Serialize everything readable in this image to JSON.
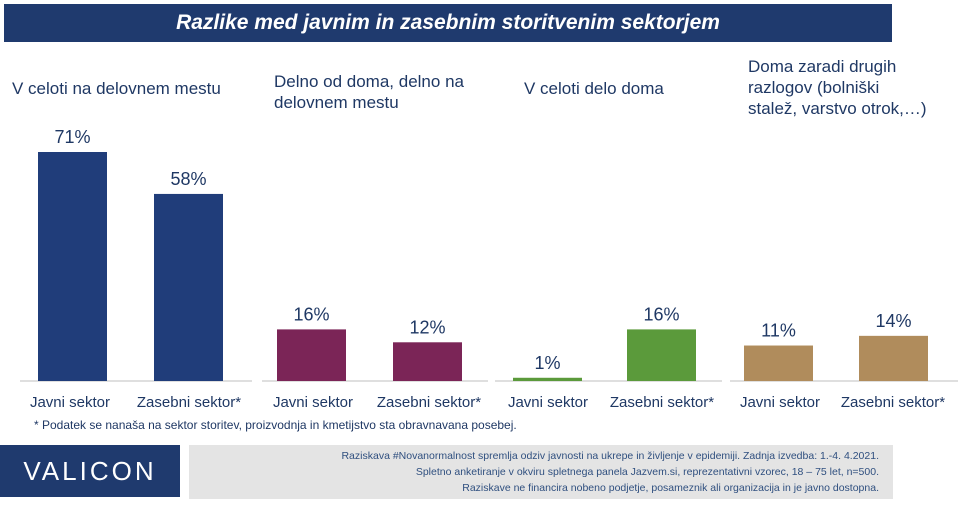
{
  "title": "Razlike med javnim in zasebnim storitvenim sektorjem",
  "colors": {
    "header_bg": "#1f3a6e",
    "panel1": "#203d7a",
    "panel2": "#7b2557",
    "panel3": "#5b9a3b",
    "panel4": "#b08c5c",
    "text": "#1f3864"
  },
  "chart_data": {
    "type": "bar",
    "panels": [
      {
        "title": [
          "V celoti na delovnem mestu"
        ],
        "categories": [
          "Javni sektor",
          "Zasebni sektor*"
        ],
        "values": [
          71,
          58
        ],
        "labels": [
          "71%",
          "58%"
        ],
        "color": "#203d7a"
      },
      {
        "title": [
          "Delno od doma, delno na",
          "delovnem mestu"
        ],
        "categories": [
          "Javni sektor",
          "Zasebni sektor*"
        ],
        "values": [
          16,
          12
        ],
        "labels": [
          "16%",
          "12%"
        ],
        "color": "#7b2557"
      },
      {
        "title": [
          "V celoti delo doma"
        ],
        "categories": [
          "Javni sektor",
          "Zasebni sektor*"
        ],
        "values": [
          1,
          16
        ],
        "labels": [
          "1%",
          "16%"
        ],
        "color": "#5b9a3b"
      },
      {
        "title": [
          "Doma zaradi drugih",
          "razlogov (bolniški",
          "stalež, varstvo otrok,…)"
        ],
        "categories": [
          "Javni sektor",
          "Zasebni sektor*"
        ],
        "values": [
          11,
          14
        ],
        "labels": [
          "11%",
          "14%"
        ],
        "color": "#b08c5c"
      }
    ],
    "ylim": [
      0,
      71
    ]
  },
  "footnote": "* Podatek se nanaša na sektor storitev, proizvodnja in kmetijstvo sta obravnavana posebej.",
  "logo": "VALICON",
  "info_lines": [
    "Raziskava #Novanormalnost spremlja odziv javnosti na ukrepe in življenje v epidemiji. Zadnja izvedba: 1.-4. 4.2021.",
    "Spletno anketiranje v okviru spletnega panela Jazvem.si, reprezentativni vzorec, 18 – 75 let, n=500.",
    "Raziskave ne financira nobeno podjetje, posameznik ali organizacija in je javno dostopna."
  ]
}
